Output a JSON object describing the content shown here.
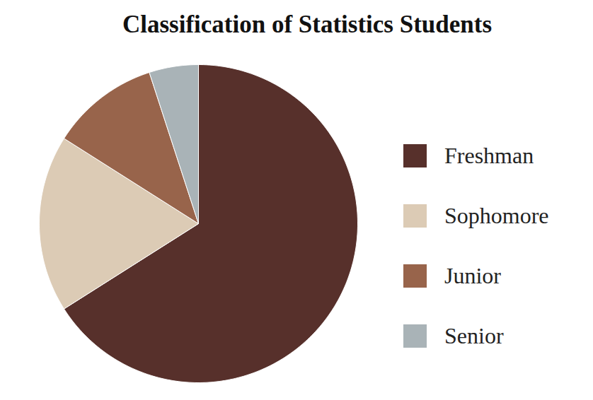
{
  "chart_data": {
    "type": "pie",
    "title": "Classification of Statistics Students",
    "categories": [
      "Freshman",
      "Sophomore",
      "Junior",
      "Senior"
    ],
    "values": [
      66,
      18,
      11,
      5
    ],
    "colors": [
      "#57302b",
      "#dccbb5",
      "#98644b",
      "#a9b3b7"
    ],
    "legend": "right"
  }
}
